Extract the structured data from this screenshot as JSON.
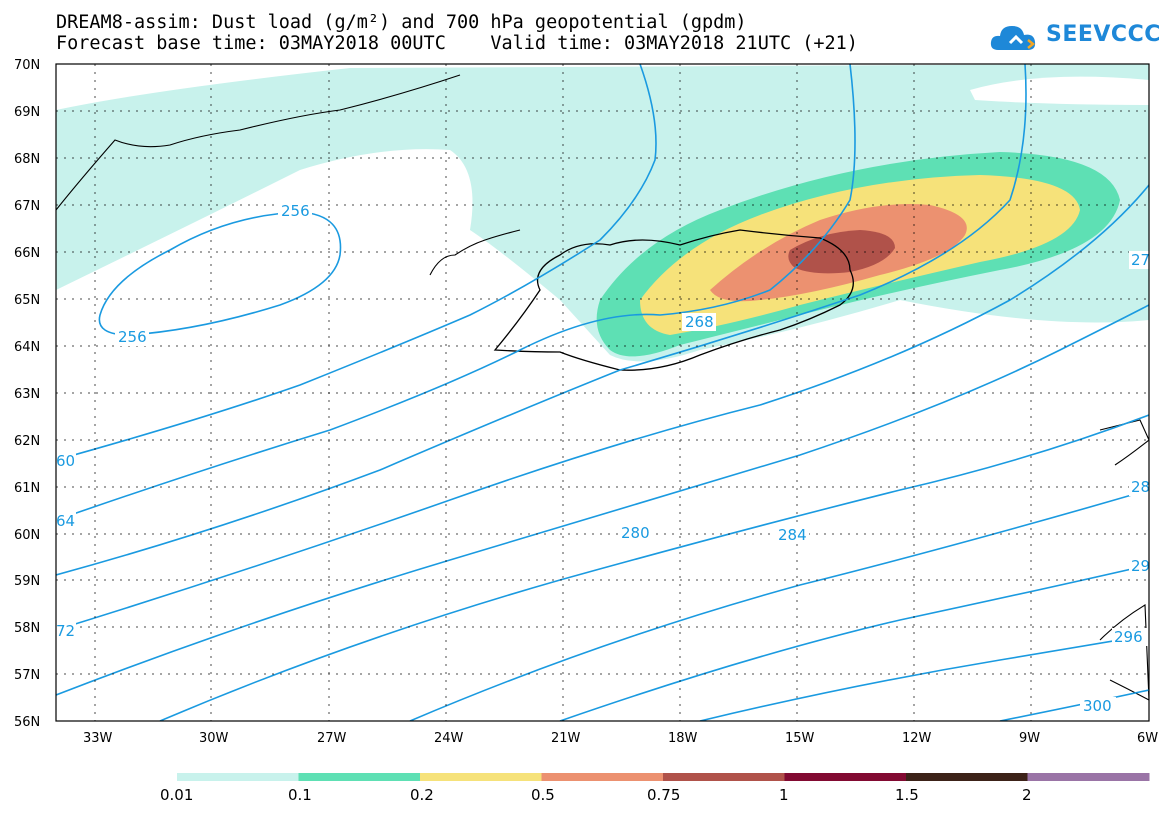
{
  "header": {
    "title_line1": "DREAM8-assim: Dust load (g/m²) and 700 hPa geopotential (gpdm)",
    "title_line2": "Forecast base time: 03MAY2018 00UTC    Valid time: 03MAY2018 21UTC (+21)"
  },
  "logo": {
    "text": "SEEVCCC",
    "icon": "cloud-icon",
    "color": "#1e88d8"
  },
  "map": {
    "lat_labels": [
      "70N",
      "69N",
      "68N",
      "67N",
      "66N",
      "65N",
      "64N",
      "63N",
      "62N",
      "61N",
      "60N",
      "59N",
      "58N",
      "57N",
      "56N"
    ],
    "lon_labels": [
      "33W",
      "30W",
      "27W",
      "24W",
      "21W",
      "18W",
      "15W",
      "12W",
      "9W",
      "6W"
    ],
    "contour_labels": [
      "256",
      "256",
      "268",
      "280",
      "284",
      "60",
      "64",
      "72",
      "27",
      "28",
      "29",
      "296",
      "300"
    ],
    "contour_color": "#1a9ae0"
  },
  "colorbar": {
    "labels": [
      "0.01",
      "0.1",
      "0.2",
      "0.5",
      "0.75",
      "1",
      "1.5",
      "2"
    ],
    "colors": [
      "#c8f2ec",
      "#5ee0b4",
      "#f6e27a",
      "#ec9170",
      "#b0524a",
      "#820a32",
      "#3c2218",
      "#9a74a6"
    ]
  }
}
